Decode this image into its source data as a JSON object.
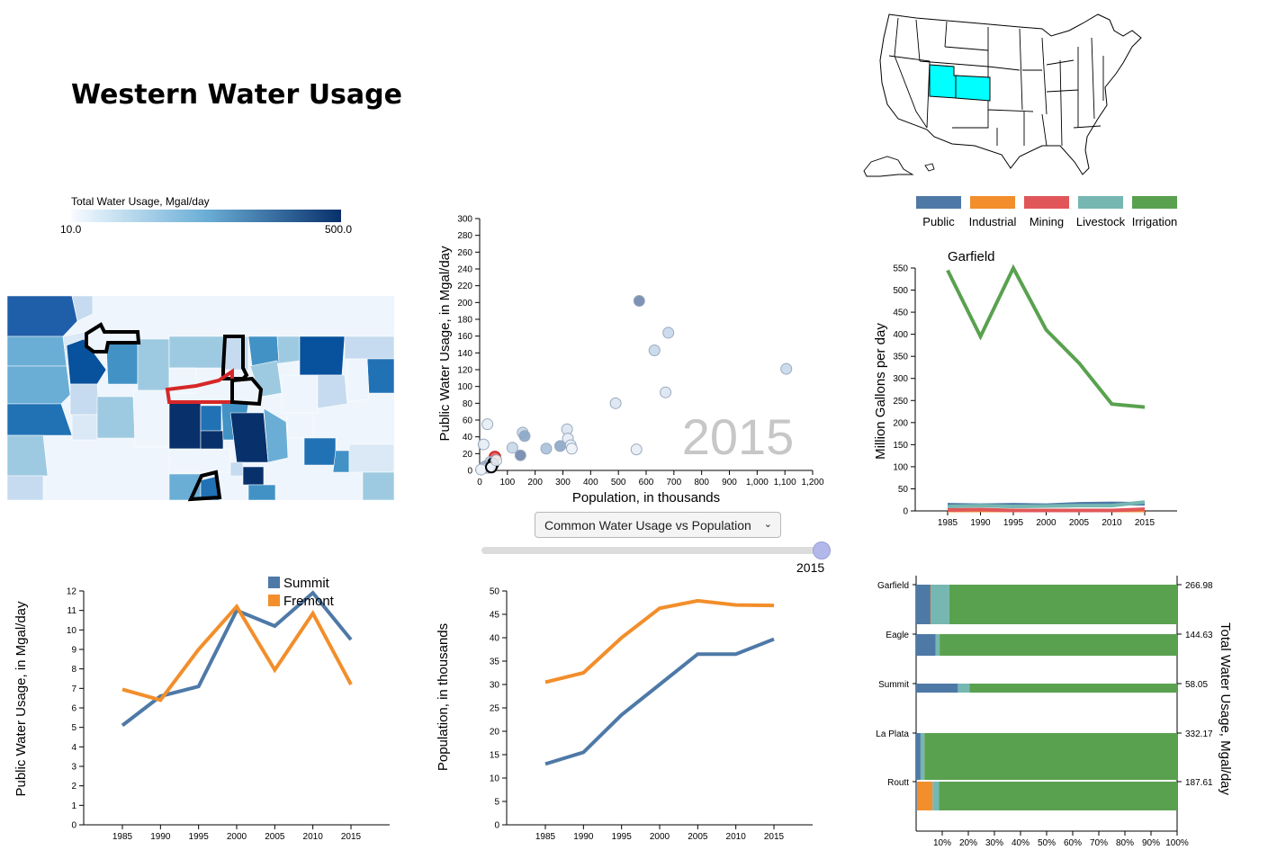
{
  "page": {
    "title": "Western Water Usage"
  },
  "colors": {
    "public": "#4e79a7",
    "industrial": "#f28e2b",
    "mining": "#e15759",
    "livestock": "#76b7b2",
    "irrigation": "#59a14f",
    "highlight_state": "#00ffff",
    "scale_low": "#f7fbff",
    "scale_high": "#08306b"
  },
  "choropleth": {
    "legend_title": "Total Water Usage, Mgal/day",
    "legend_min": "10.0",
    "legend_max": "500.0"
  },
  "usa_map": {
    "highlighted_states": [
      "Utah",
      "Colorado"
    ]
  },
  "legend": {
    "items": [
      {
        "label": "Public",
        "color": "#4e79a7"
      },
      {
        "label": "Industrial",
        "color": "#f28e2b"
      },
      {
        "label": "Mining",
        "color": "#e15759"
      },
      {
        "label": "Livestock",
        "color": "#76b7b2"
      },
      {
        "label": "Irrigation",
        "color": "#59a14f"
      }
    ]
  },
  "controls": {
    "chart_select": "Common Water Usage vs Population",
    "year_value": "2015",
    "year_fraction": 1.0
  },
  "chart_data": [
    {
      "id": "scatter",
      "type": "scatter",
      "watermark": "2015",
      "xlabel": "Population, in thousands",
      "ylabel": "Public Water Usage, in Mgal/day",
      "xlim": [
        0,
        1200
      ],
      "ylim": [
        0,
        300
      ],
      "x_ticks": [
        "0",
        "100",
        "200",
        "300",
        "400",
        "500",
        "600",
        "700",
        "800",
        "900",
        "1,000",
        "1,100",
        "1,200"
      ],
      "y_ticks": [
        "0",
        "20",
        "40",
        "60",
        "80",
        "100",
        "120",
        "140",
        "160",
        "180",
        "200",
        "220",
        "240",
        "260",
        "280",
        "300"
      ],
      "points": [
        {
          "x": 575,
          "y": 202,
          "c": "#6f86ad"
        },
        {
          "x": 680,
          "y": 164,
          "c": "#c8d8ea"
        },
        {
          "x": 630,
          "y": 143,
          "c": "#c8d8ea"
        },
        {
          "x": 1105,
          "y": 121,
          "c": "#c8d8ea"
        },
        {
          "x": 670,
          "y": 93,
          "c": "#dbe6f1"
        },
        {
          "x": 490,
          "y": 80,
          "c": "#dbe6f1"
        },
        {
          "x": 565,
          "y": 25,
          "c": "#e5edf6"
        },
        {
          "x": 315,
          "y": 49,
          "c": "#dbe6f1"
        },
        {
          "x": 318,
          "y": 38,
          "c": "#e5edf6"
        },
        {
          "x": 328,
          "y": 30,
          "c": "#e5edf6"
        },
        {
          "x": 332,
          "y": 26,
          "c": "#f0f4fa"
        },
        {
          "x": 290,
          "y": 29,
          "c": "#8ba6c8"
        },
        {
          "x": 240,
          "y": 26,
          "c": "#a9c1dc"
        },
        {
          "x": 155,
          "y": 45,
          "c": "#c8d8ea"
        },
        {
          "x": 162,
          "y": 41,
          "c": "#8ba6c8"
        },
        {
          "x": 118,
          "y": 27,
          "c": "#c8d8ea"
        },
        {
          "x": 147,
          "y": 18,
          "c": "#6f86ad"
        },
        {
          "x": 28,
          "y": 55,
          "c": "#e5edf6"
        },
        {
          "x": 14,
          "y": 31,
          "c": "#e5edf6"
        },
        {
          "x": 55,
          "y": 16,
          "c": "#e15759",
          "o": "#d62728"
        },
        {
          "x": 38,
          "y": 10,
          "c": "#b7cce3"
        },
        {
          "x": 48,
          "y": 8,
          "c": "#6f86ad",
          "o": "#000000"
        },
        {
          "x": 20,
          "y": 5,
          "c": "#8ba6c8"
        },
        {
          "x": 30,
          "y": 3,
          "c": "#c8d8ea"
        },
        {
          "x": 10,
          "y": 2,
          "c": "#dbe6f1"
        },
        {
          "x": 5,
          "y": 1,
          "c": "#f0f4fa"
        },
        {
          "x": 42,
          "y": 4,
          "c": "#f0f4fa",
          "o": "#000000"
        },
        {
          "x": 60,
          "y": 12,
          "c": "#f0f4fa"
        }
      ]
    },
    {
      "id": "category-line",
      "type": "line",
      "title": "Garfield",
      "ylabel": "Million Gallons per day",
      "x": [
        1985,
        1990,
        1995,
        2000,
        2005,
        2010,
        2015
      ],
      "ylim": [
        0,
        550
      ],
      "y_ticks": [
        0,
        50,
        100,
        150,
        200,
        250,
        300,
        350,
        400,
        450,
        500,
        550
      ],
      "series": [
        {
          "name": "Irrigation",
          "color": "#59a14f",
          "values": [
            545,
            395,
            550,
            410,
            335,
            242,
            235
          ]
        },
        {
          "name": "Public",
          "color": "#4e79a7",
          "values": [
            14,
            13,
            14,
            13,
            16,
            17,
            16
          ]
        },
        {
          "name": "Livestock",
          "color": "#76b7b2",
          "values": [
            10,
            12,
            10,
            11,
            12,
            12,
            20
          ]
        },
        {
          "name": "Industrial",
          "color": "#f28e2b",
          "values": [
            1,
            1,
            1,
            1,
            1,
            1,
            1
          ]
        },
        {
          "name": "Mining",
          "color": "#e15759",
          "values": [
            2,
            3,
            1,
            1,
            1,
            1,
            4
          ]
        }
      ]
    },
    {
      "id": "public-usage-line",
      "type": "line",
      "ylabel": "Public Water Usage, in Mgal/day",
      "x": [
        1985,
        1990,
        1995,
        2000,
        2005,
        2010,
        2015
      ],
      "ylim": [
        0,
        12
      ],
      "y_ticks": [
        0,
        1,
        2,
        3,
        4,
        5,
        6,
        7,
        8,
        9,
        10,
        11,
        12
      ],
      "series": [
        {
          "name": "Summit",
          "color": "#4e79a7",
          "values": [
            5.1,
            6.6,
            7.1,
            11.0,
            10.2,
            11.9,
            9.5
          ]
        },
        {
          "name": "Fremont",
          "color": "#f28e2b",
          "values": [
            6.95,
            6.4,
            9.0,
            11.2,
            7.95,
            10.85,
            7.2
          ]
        }
      ]
    },
    {
      "id": "population-line",
      "type": "line",
      "ylabel": "Population, in thousands",
      "x": [
        1985,
        1990,
        1995,
        2000,
        2005,
        2010,
        2015
      ],
      "ylim": [
        0,
        50
      ],
      "y_ticks": [
        0,
        5,
        10,
        15,
        20,
        25,
        30,
        35,
        40,
        45,
        50
      ],
      "series": [
        {
          "name": "Summit",
          "color": "#4e79a7",
          "values": [
            13,
            15.5,
            23.5,
            30,
            36.5,
            36.5,
            39.7
          ]
        },
        {
          "name": "Fremont",
          "color": "#f28e2b",
          "values": [
            30.5,
            32.5,
            40,
            46.3,
            47.9,
            47,
            46.9
          ]
        }
      ]
    },
    {
      "id": "stacked-bar",
      "type": "bar",
      "orientation": "horizontal",
      "stacked_percent": true,
      "ylabel": "Total Water Usage, Mgal/day",
      "x_ticks": [
        "10%",
        "20%",
        "30%",
        "40%",
        "50%",
        "60%",
        "70%",
        "80%",
        "90%",
        "100%"
      ],
      "categories": [
        "Garfield",
        "Eagle",
        "Summit",
        "La Plata",
        "Routt"
      ],
      "totals": [
        "266.98",
        "144.63",
        "58.05",
        "332.17",
        "187.61"
      ],
      "series": [
        {
          "name": "Public",
          "color": "#4e79a7",
          "values": [
            5.5,
            7.5,
            16,
            1.7,
            0.3
          ]
        },
        {
          "name": "Industrial",
          "color": "#f28e2b",
          "values": [
            0.2,
            0,
            0,
            0,
            6
          ]
        },
        {
          "name": "Mining",
          "color": "#e15759",
          "values": [
            0,
            0,
            0,
            0,
            0
          ]
        },
        {
          "name": "Livestock",
          "color": "#76b7b2",
          "values": [
            7,
            1.5,
            4.5,
            1.5,
            2.5
          ]
        },
        {
          "name": "Irrigation",
          "color": "#59a14f",
          "values": [
            87.3,
            91,
            79.5,
            96.8,
            91.2
          ]
        }
      ]
    }
  ]
}
